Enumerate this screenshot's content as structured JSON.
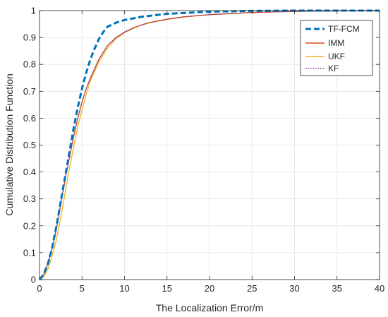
{
  "chart_data": {
    "type": "line",
    "title": "",
    "xlabel": "The Localization Error/m",
    "ylabel": "Cumulative Distribution Function",
    "xlim": [
      0,
      40
    ],
    "ylim": [
      0,
      1
    ],
    "xticks": [
      0,
      5,
      10,
      15,
      20,
      25,
      30,
      35,
      40
    ],
    "yticks": [
      0,
      0.1,
      0.2,
      0.3,
      0.4,
      0.5,
      0.6,
      0.7,
      0.8,
      0.9,
      1
    ],
    "grid": true,
    "legend_position": "top-right",
    "series": [
      {
        "name": "TF-FCM",
        "color": "#0072BD",
        "style": "dashed",
        "points": [
          [
            0,
            0
          ],
          [
            0.5,
            0.02
          ],
          [
            1,
            0.06
          ],
          [
            1.5,
            0.12
          ],
          [
            2,
            0.2
          ],
          [
            2.5,
            0.29
          ],
          [
            3,
            0.38
          ],
          [
            3.5,
            0.47
          ],
          [
            4,
            0.56
          ],
          [
            4.5,
            0.64
          ],
          [
            5,
            0.71
          ],
          [
            5.5,
            0.77
          ],
          [
            6,
            0.82
          ],
          [
            6.5,
            0.86
          ],
          [
            7,
            0.895
          ],
          [
            7.5,
            0.92
          ],
          [
            8,
            0.94
          ],
          [
            9,
            0.955
          ],
          [
            10,
            0.965
          ],
          [
            12,
            0.977
          ],
          [
            15,
            0.988
          ],
          [
            20,
            0.996
          ],
          [
            25,
            0.999
          ],
          [
            30,
            1
          ],
          [
            40,
            1
          ]
        ]
      },
      {
        "name": "IMM",
        "color": "#D95319",
        "style": "solid",
        "points": [
          [
            0,
            0
          ],
          [
            0.5,
            0.02
          ],
          [
            1,
            0.06
          ],
          [
            1.5,
            0.12
          ],
          [
            2,
            0.19
          ],
          [
            2.5,
            0.28
          ],
          [
            3,
            0.37
          ],
          [
            3.5,
            0.45
          ],
          [
            4,
            0.53
          ],
          [
            4.5,
            0.6
          ],
          [
            5,
            0.66
          ],
          [
            5.5,
            0.71
          ],
          [
            6,
            0.75
          ],
          [
            7,
            0.82
          ],
          [
            8,
            0.87
          ],
          [
            9,
            0.9
          ],
          [
            10,
            0.92
          ],
          [
            11,
            0.935
          ],
          [
            12,
            0.947
          ],
          [
            13,
            0.956
          ],
          [
            15,
            0.968
          ],
          [
            17,
            0.977
          ],
          [
            20,
            0.985
          ],
          [
            25,
            0.993
          ],
          [
            30,
            0.997
          ],
          [
            35,
            0.999
          ],
          [
            40,
            1
          ]
        ]
      },
      {
        "name": "UKF",
        "color": "#EDB120",
        "style": "solid",
        "points": [
          [
            0,
            0
          ],
          [
            0.5,
            0.01
          ],
          [
            1,
            0.04
          ],
          [
            1.5,
            0.09
          ],
          [
            2,
            0.15
          ],
          [
            2.5,
            0.23
          ],
          [
            3,
            0.32
          ],
          [
            3.5,
            0.41
          ],
          [
            4,
            0.49
          ],
          [
            4.5,
            0.57
          ],
          [
            5,
            0.63
          ],
          [
            5.5,
            0.69
          ],
          [
            6,
            0.74
          ],
          [
            7,
            0.81
          ],
          [
            8,
            0.86
          ],
          [
            9,
            0.895
          ],
          [
            10,
            0.918
          ],
          [
            11,
            0.934
          ],
          [
            12,
            0.946
          ],
          [
            13,
            0.955
          ],
          [
            15,
            0.967
          ],
          [
            17,
            0.976
          ],
          [
            20,
            0.985
          ],
          [
            25,
            0.993
          ],
          [
            30,
            0.997
          ],
          [
            35,
            0.999
          ],
          [
            40,
            1
          ]
        ]
      },
      {
        "name": "KF",
        "color": "#7E2F8E",
        "style": "dotted",
        "points": [
          [
            0,
            0
          ],
          [
            0.5,
            0.02
          ],
          [
            1,
            0.06
          ],
          [
            1.5,
            0.12
          ],
          [
            2,
            0.19
          ],
          [
            2.5,
            0.28
          ],
          [
            3,
            0.37
          ],
          [
            3.5,
            0.45
          ],
          [
            4,
            0.53
          ],
          [
            4.5,
            0.6
          ],
          [
            5,
            0.66
          ],
          [
            5.5,
            0.71
          ],
          [
            6,
            0.75
          ],
          [
            7,
            0.82
          ],
          [
            8,
            0.87
          ],
          [
            9,
            0.9
          ],
          [
            10,
            0.92
          ],
          [
            11,
            0.935
          ],
          [
            12,
            0.947
          ],
          [
            13,
            0.956
          ],
          [
            15,
            0.968
          ],
          [
            17,
            0.977
          ],
          [
            20,
            0.985
          ],
          [
            25,
            0.993
          ],
          [
            30,
            0.997
          ],
          [
            35,
            0.999
          ],
          [
            40,
            1
          ]
        ]
      }
    ]
  }
}
